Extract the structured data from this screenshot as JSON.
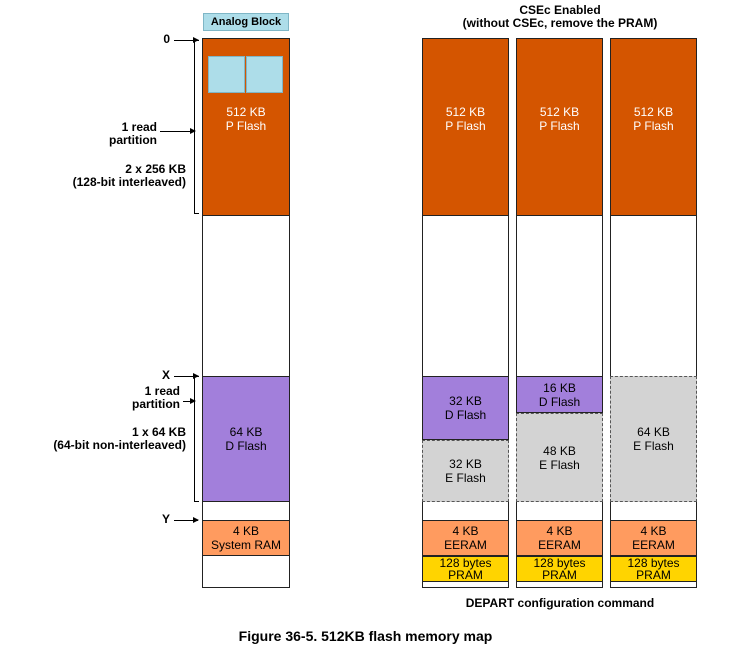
{
  "analog_block": {
    "label": "Analog Block"
  },
  "csec_title": {
    "line1": "CSEc Enabled",
    "line2": "(without CSEc, remove the PRAM)"
  },
  "axis_markers": {
    "zero": "0",
    "x": "X",
    "y": "Y"
  },
  "left_labels": {
    "read_partition_1": "1 read\npartition",
    "pflash_org": "2 x 256 KB",
    "pflash_interleave": "(128-bit interleaved)",
    "read_partition_2": "1 read\npartition",
    "dflash_org": "1 x 64 KB",
    "dflash_interleave": "(64-bit non-interleaved)"
  },
  "main_column": {
    "pflash": "512 KB\nP Flash",
    "dflash": "64 KB\nD Flash",
    "system_ram": "4 KB\nSystem RAM"
  },
  "config_columns": [
    {
      "pflash": "512 KB\nP Flash",
      "dflash": "32 KB\nD Flash",
      "eflash": "32 KB\nE Flash",
      "eeram": "4 KB\nEERAM",
      "pram": "128 bytes\nPRAM"
    },
    {
      "pflash": "512 KB\nP Flash",
      "dflash": "16 KB\nD Flash",
      "eflash": "48 KB\nE Flash",
      "eeram": "4 KB\nEERAM",
      "pram": "128 bytes\nPRAM"
    },
    {
      "pflash": "512 KB\nP Flash",
      "eflash": "64 KB\nE Flash",
      "eeram": "4 KB\nEERAM",
      "pram": "128 bytes\nPRAM"
    }
  ],
  "depart_caption": "DEPART configuration command",
  "figure_caption": "Figure 36-5. 512KB flash memory map",
  "colors": {
    "pflash": "#D45500",
    "dflash": "#A27FDB",
    "eflash": "#D3D3D3",
    "ram": "#FF9B5F",
    "pram": "#FFD400",
    "analog": "#ADDDE9"
  }
}
